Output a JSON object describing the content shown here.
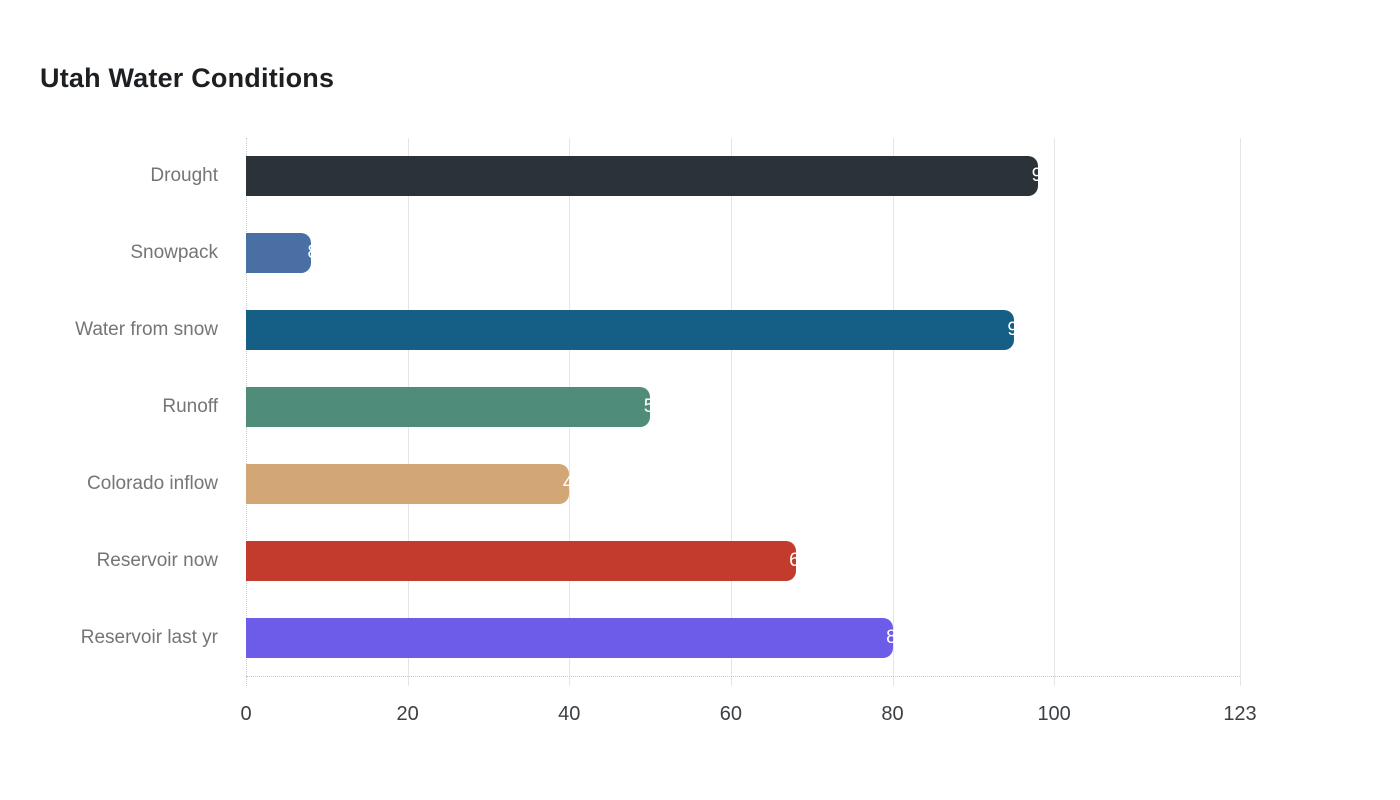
{
  "page": {
    "title": "Utah Water Conditions"
  },
  "chart_data": {
    "type": "bar",
    "orientation": "horizontal",
    "title": "Utah Water Conditions",
    "categories": [
      "Drought",
      "Snowpack",
      "Water from snow",
      "Runoff",
      "Colorado inflow",
      "Reservoir now",
      "Reservoir last yr"
    ],
    "values": [
      98,
      8,
      95,
      50,
      40,
      68,
      80
    ],
    "bar_colors": [
      "#2c3338",
      "#4a6fa5",
      "#155e86",
      "#4f8d7a",
      "#d3a676",
      "#c23b2c",
      "#6c5ce7"
    ],
    "value_label_color": "#ffffff",
    "xlabel": "",
    "ylabel": "",
    "xlim": [
      0,
      123
    ],
    "x_ticks": [
      0,
      20,
      40,
      60,
      80,
      100,
      123
    ],
    "grid": "vertical-gridlines-on",
    "legend": "none",
    "background_color": "#ffffff",
    "category_label_color": "#757575",
    "tick_label_color": "#3d4043",
    "title_color": "#1d2023"
  }
}
